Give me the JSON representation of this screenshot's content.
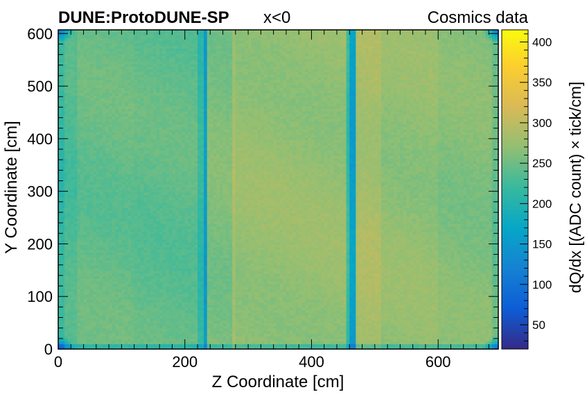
{
  "chart_data": {
    "type": "heatmap",
    "title_left": "DUNE:ProtoDUNE-SP",
    "title_mid": "x<0",
    "title_right": "Cosmics data",
    "xlabel": "Z Coordinate [cm]",
    "ylabel": "Y Coordinate [cm]",
    "zlabel": "dQ/dx [(ADC count) × tick/cm]",
    "xlim": [
      0,
      695
    ],
    "ylim": [
      0,
      607
    ],
    "zlim": [
      20,
      415
    ],
    "x_ticks": [
      0,
      200,
      400,
      600
    ],
    "y_ticks": [
      0,
      100,
      200,
      300,
      400,
      500,
      600
    ],
    "z_ticks": [
      50,
      100,
      150,
      200,
      250,
      300,
      350,
      400
    ],
    "x_tick_labels": [
      "0",
      "200",
      "400",
      "600"
    ],
    "y_tick_labels": [
      "0",
      "100",
      "200",
      "300",
      "400",
      "500",
      "600"
    ],
    "z_tick_labels": [
      "50",
      "100",
      "150",
      "200",
      "250",
      "300",
      "350",
      "400"
    ],
    "x_bins": 139,
    "y_bins": 122,
    "z_profile": {
      "description_values_in_dQdx": true,
      "segments": [
        {
          "z_from": 0,
          "z_to": 30,
          "value": 232
        },
        {
          "z_from": 30,
          "z_to": 120,
          "value": 245
        },
        {
          "z_from": 120,
          "z_to": 222,
          "value": 242
        },
        {
          "z_from": 222,
          "z_to": 228,
          "value": 215
        },
        {
          "z_from": 228,
          "z_to": 236,
          "value": 155
        },
        {
          "z_from": 236,
          "z_to": 275,
          "value": 258
        },
        {
          "z_from": 275,
          "z_to": 281,
          "value": 285
        },
        {
          "z_from": 281,
          "z_to": 455,
          "value": 272
        },
        {
          "z_from": 455,
          "z_to": 460,
          "value": 220
        },
        {
          "z_from": 460,
          "z_to": 468,
          "value": 160
        },
        {
          "z_from": 468,
          "z_to": 510,
          "value": 285
        },
        {
          "z_from": 510,
          "z_to": 600,
          "value": 270
        },
        {
          "z_from": 600,
          "z_to": 695,
          "value": 262
        }
      ]
    },
    "colormap": {
      "name": "parula",
      "stops": [
        {
          "value": 20,
          "color": "#352a87"
        },
        {
          "value": 70,
          "color": "#0d5dd6"
        },
        {
          "value": 120,
          "color": "#1582d2"
        },
        {
          "value": 170,
          "color": "#06a7c6"
        },
        {
          "value": 220,
          "color": "#38b99e"
        },
        {
          "value": 270,
          "color": "#92bf73"
        },
        {
          "value": 320,
          "color": "#d9ba56"
        },
        {
          "value": 370,
          "color": "#fcce2e"
        },
        {
          "value": 415,
          "color": "#f9fb0e"
        }
      ]
    },
    "grid": false,
    "legend": "colorbar-right"
  }
}
